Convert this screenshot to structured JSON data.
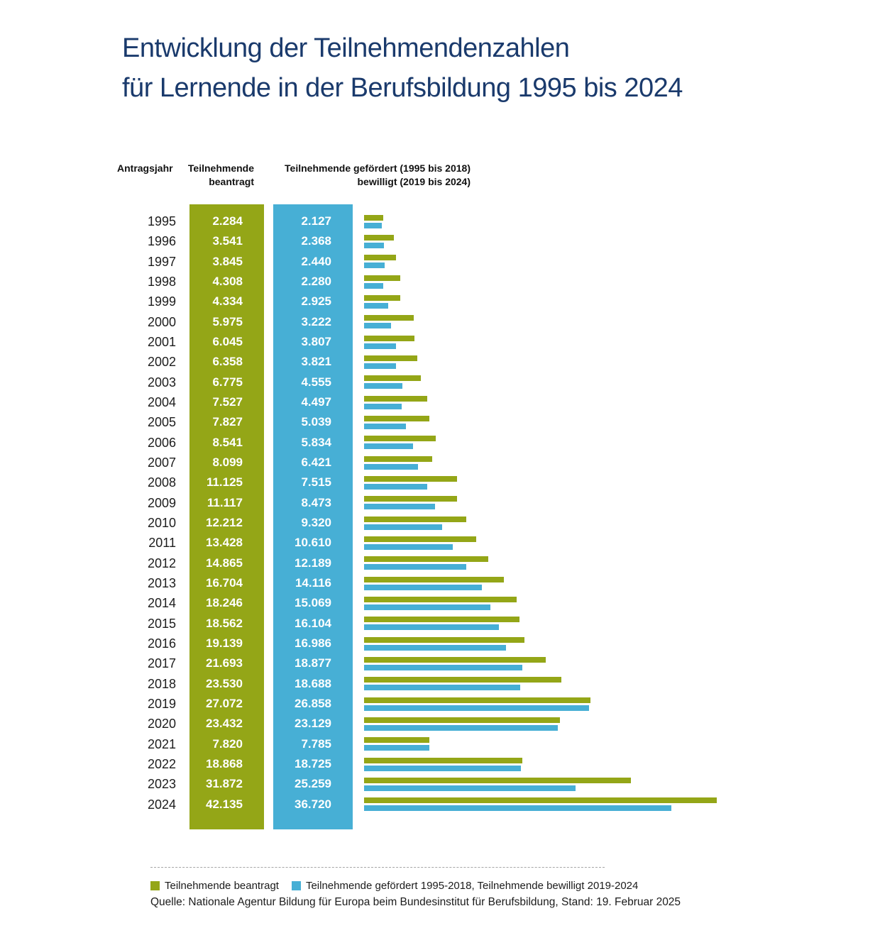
{
  "title": {
    "line1": "Entwicklung der Teilnehmendenzahlen",
    "line2": "für Lernende in der Berufsbildung 1995 bis 2024"
  },
  "columns": {
    "year": "Antragsjahr",
    "applied": [
      "Teilnehmende",
      "beantragt"
    ],
    "granted": [
      "Teilnehmende gefördert (1995 bis 2018)",
      "bewilligt (2019 bis 2024)"
    ]
  },
  "colors": {
    "green": "#94A617",
    "blue": "#47AFD5",
    "title_blue": "#1A3A6C"
  },
  "legend": {
    "green_label": "Teilnehmende beantragt",
    "blue_label": "Teilnehmende gefördert 1995-2018, Teilnehmende bewilligt 2019-2024"
  },
  "source": "Quelle: Nationale Agentur Bildung für Europa beim Bundesinstitut für Berufsbildung, Stand: 19. Februar 2025",
  "chart_data": {
    "type": "bar",
    "orientation": "horizontal",
    "title": "Entwicklung der Teilnehmendenzahlen für Lernende in der Berufsbildung 1995 bis 2024",
    "xlabel": "Teilnehmende",
    "ylabel": "Antragsjahr",
    "xlim": [
      0,
      42135
    ],
    "grid": false,
    "legend_position": "bottom",
    "number_format": "de-DE",
    "categories": [
      1995,
      1996,
      1997,
      1998,
      1999,
      2000,
      2001,
      2002,
      2003,
      2004,
      2005,
      2006,
      2007,
      2008,
      2009,
      2010,
      2011,
      2012,
      2013,
      2014,
      2015,
      2016,
      2017,
      2018,
      2019,
      2020,
      2021,
      2022,
      2023,
      2024
    ],
    "series": [
      {
        "name": "Teilnehmende beantragt",
        "color": "#94A617",
        "values": [
          2284,
          3541,
          3845,
          4308,
          4334,
          5975,
          6045,
          6358,
          6775,
          7527,
          7827,
          8541,
          8099,
          11125,
          11117,
          12212,
          13428,
          14865,
          16704,
          18246,
          18562,
          19139,
          21693,
          23530,
          27072,
          23432,
          7820,
          18868,
          31872,
          42135
        ]
      },
      {
        "name": "Teilnehmende gefördert (1995 bis 2018), bewilligt (2019 bis 2024)",
        "color": "#47AFD5",
        "values": [
          2127,
          2368,
          2440,
          2280,
          2925,
          3222,
          3807,
          3821,
          4555,
          4497,
          5039,
          5834,
          6421,
          7515,
          8473,
          9320,
          10610,
          12189,
          14116,
          15069,
          16104,
          16986,
          18877,
          18688,
          26858,
          23129,
          7785,
          18725,
          25259,
          36720
        ]
      }
    ]
  }
}
